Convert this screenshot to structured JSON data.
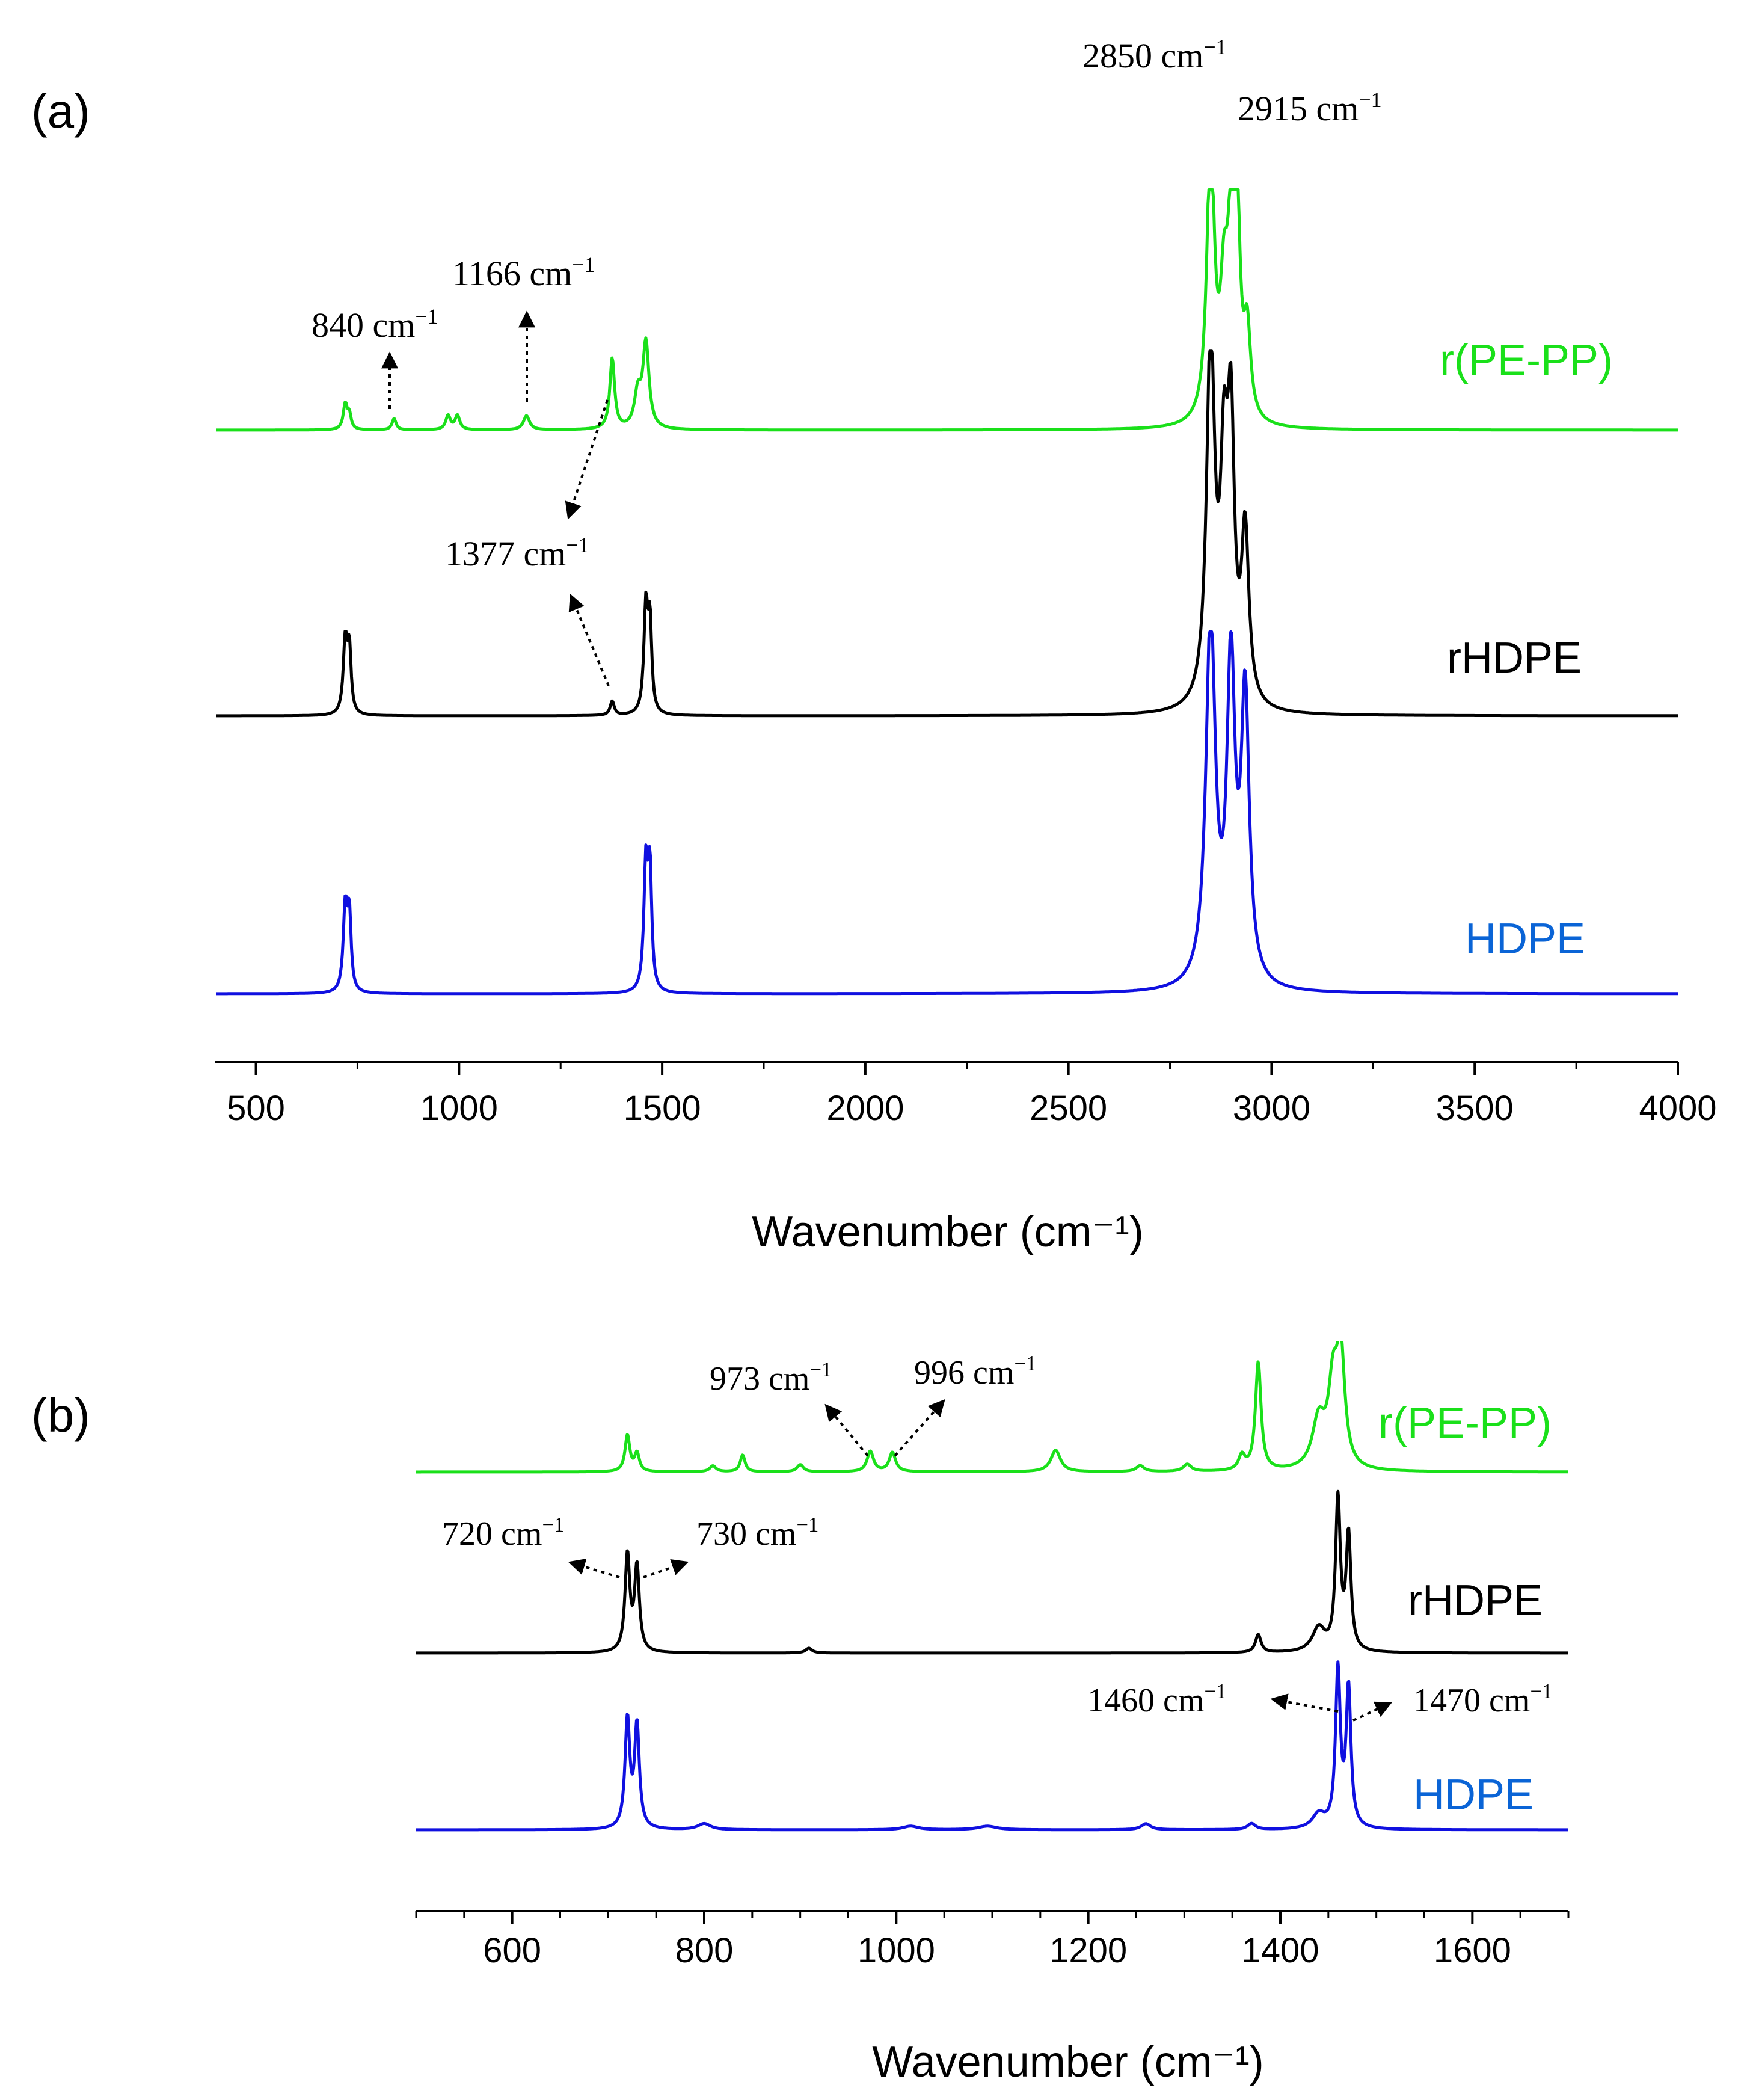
{
  "chart_data": [
    {
      "panel_label": "(a)",
      "type": "line",
      "xlabel": "Wavenumber (cm⁻¹)",
      "xlim": [
        400,
        4000
      ],
      "xticks": [
        500,
        1000,
        1500,
        2000,
        2500,
        3000,
        3500,
        4000
      ],
      "xtick_labels": [
        "500",
        "1000",
        "1500",
        "2000",
        "2500",
        "3000",
        "3500",
        "4000"
      ],
      "ylabel": "",
      "yticks_shown": false,
      "series": [
        {
          "name": "r(PE-PP)",
          "color": "#1ae01a",
          "baseline": 2.05,
          "peaks": [
            {
              "x": 720,
              "h": 0.09,
              "w": 6
            },
            {
              "x": 730,
              "h": 0.05,
              "w": 5
            },
            {
              "x": 840,
              "h": 0.04,
              "w": 6
            },
            {
              "x": 973,
              "h": 0.05,
              "w": 7
            },
            {
              "x": 996,
              "h": 0.05,
              "w": 7
            },
            {
              "x": 1166,
              "h": 0.05,
              "w": 9
            },
            {
              "x": 1377,
              "h": 0.25,
              "w": 7
            },
            {
              "x": 1440,
              "h": 0.12,
              "w": 10
            },
            {
              "x": 1460,
              "h": 0.3,
              "w": 9
            },
            {
              "x": 2850,
              "h": 1.0,
              "w": 11
            },
            {
              "x": 2883,
              "h": 0.4,
              "w": 11
            },
            {
              "x": 2900,
              "h": 0.55,
              "w": 10
            },
            {
              "x": 2915,
              "h": 0.7,
              "w": 9
            },
            {
              "x": 2940,
              "h": 0.3,
              "w": 10
            }
          ],
          "clip_top": 2.9
        },
        {
          "name": "rHDPE",
          "color": "#000000",
          "baseline": 1.0,
          "peaks": [
            {
              "x": 720,
              "h": 0.26,
              "w": 6
            },
            {
              "x": 730,
              "h": 0.22,
              "w": 5
            },
            {
              "x": 1377,
              "h": 0.05,
              "w": 6
            },
            {
              "x": 1460,
              "h": 0.38,
              "w": 6
            },
            {
              "x": 1470,
              "h": 0.3,
              "w": 5
            },
            {
              "x": 2850,
              "h": 1.3,
              "w": 12
            },
            {
              "x": 2883,
              "h": 0.75,
              "w": 11
            },
            {
              "x": 2900,
              "h": 0.9,
              "w": 10
            },
            {
              "x": 2935,
              "h": 0.6,
              "w": 11
            }
          ],
          "clip_top": 2.29
        },
        {
          "name": "HDPE",
          "color": "#1010e0",
          "baseline": 0.0,
          "peaks": [
            {
              "x": 720,
              "h": 0.3,
              "w": 6
            },
            {
              "x": 730,
              "h": 0.26,
              "w": 5
            },
            {
              "x": 1460,
              "h": 0.45,
              "w": 6
            },
            {
              "x": 1470,
              "h": 0.4,
              "w": 5
            },
            {
              "x": 2850,
              "h": 1.3,
              "w": 14
            },
            {
              "x": 2900,
              "h": 1.1,
              "w": 12
            },
            {
              "x": 2935,
              "h": 1.0,
              "w": 12
            }
          ],
          "clip_top": 1.28
        }
      ],
      "annotations": [
        {
          "text": "2850 cm",
          "sup": "−1"
        },
        {
          "text": "2915 cm",
          "sup": "−1"
        },
        {
          "text": "1166 cm",
          "sup": "−1"
        },
        {
          "text": "840 cm",
          "sup": "−1"
        },
        {
          "text": "1377 cm",
          "sup": "−1"
        }
      ]
    },
    {
      "panel_label": "(b)",
      "type": "line",
      "xlabel": "Wavenumber (cm⁻¹)",
      "xlim": [
        500,
        1700
      ],
      "xticks": [
        600,
        800,
        1000,
        1200,
        1400,
        1600
      ],
      "xtick_labels": [
        "600",
        "800",
        "1000",
        "1200",
        "1400",
        "1600"
      ],
      "ylabel": "",
      "yticks_shown": false,
      "series": [
        {
          "name": "r(PE-PP)",
          "color": "#1ae01a",
          "baseline": 2.0,
          "peaks": [
            {
              "x": 720,
              "h": 0.3,
              "w": 3
            },
            {
              "x": 730,
              "h": 0.15,
              "w": 3
            },
            {
              "x": 809,
              "h": 0.05,
              "w": 4
            },
            {
              "x": 840,
              "h": 0.14,
              "w": 3
            },
            {
              "x": 900,
              "h": 0.06,
              "w": 4
            },
            {
              "x": 973,
              "h": 0.17,
              "w": 4
            },
            {
              "x": 996,
              "h": 0.16,
              "w": 4
            },
            {
              "x": 1166,
              "h": 0.18,
              "w": 6
            },
            {
              "x": 1254,
              "h": 0.05,
              "w": 5
            },
            {
              "x": 1303,
              "h": 0.06,
              "w": 5
            },
            {
              "x": 1360,
              "h": 0.12,
              "w": 4
            },
            {
              "x": 1377,
              "h": 0.9,
              "w": 3.5
            },
            {
              "x": 1440,
              "h": 0.4,
              "w": 8
            },
            {
              "x": 1455,
              "h": 0.65,
              "w": 6
            },
            {
              "x": 1463,
              "h": 0.9,
              "w": 5
            }
          ]
        },
        {
          "name": "rHDPE",
          "color": "#000000",
          "baseline": 1.0,
          "peaks": [
            {
              "x": 720,
              "h": 0.8,
              "w": 3
            },
            {
              "x": 730,
              "h": 0.7,
              "w": 3
            },
            {
              "x": 909,
              "h": 0.04,
              "w": 4
            },
            {
              "x": 1377,
              "h": 0.15,
              "w": 3.5
            },
            {
              "x": 1440,
              "h": 0.2,
              "w": 8
            },
            {
              "x": 1460,
              "h": 1.25,
              "w": 3
            },
            {
              "x": 1471,
              "h": 0.95,
              "w": 3
            }
          ]
        },
        {
          "name": "HDPE",
          "color": "#1010e0",
          "baseline": 0.0,
          "peaks": [
            {
              "x": 720,
              "h": 0.9,
              "w": 3
            },
            {
              "x": 730,
              "h": 0.85,
              "w": 3
            },
            {
              "x": 800,
              "h": 0.05,
              "w": 8
            },
            {
              "x": 1015,
              "h": 0.03,
              "w": 10
            },
            {
              "x": 1095,
              "h": 0.03,
              "w": 12
            },
            {
              "x": 1260,
              "h": 0.05,
              "w": 6
            },
            {
              "x": 1370,
              "h": 0.05,
              "w": 5
            },
            {
              "x": 1440,
              "h": 0.12,
              "w": 8
            },
            {
              "x": 1460,
              "h": 1.3,
              "w": 3
            },
            {
              "x": 1471,
              "h": 1.15,
              "w": 3
            }
          ]
        }
      ],
      "annotations": [
        {
          "text": "973 cm",
          "sup": "−1"
        },
        {
          "text": "996 cm",
          "sup": "−1"
        },
        {
          "text": "720 cm",
          "sup": "−1"
        },
        {
          "text": "730 cm",
          "sup": "−1"
        },
        {
          "text": "1460 cm",
          "sup": "−1"
        },
        {
          "text": "1470 cm",
          "sup": "−1"
        }
      ]
    }
  ]
}
